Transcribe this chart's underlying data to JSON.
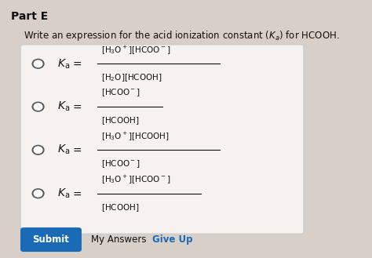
{
  "title": "Part E",
  "subtitle": "Write an expression for the acid ionization constant $(K_a)$ for HCOOH.",
  "bg_color": "#d8d0c8",
  "box_bg": "#f5f2ef",
  "box_edge": "#cccccc",
  "bullet_color": "#555555",
  "text_color": "#111111",
  "submit_bg": "#1a6ab5",
  "submit_text": "Submit",
  "my_answers_text": "My Answers",
  "give_up_text": "Give Up",
  "options": [
    {
      "numerator": "$[\\mathrm{H_3O^+}][\\mathrm{HCOO^-}]$",
      "denominator": "$[\\mathrm{H_2O}][\\mathrm{HCOOH}]$"
    },
    {
      "numerator": "$[\\mathrm{HCOO^-}]$",
      "denominator": "$[\\mathrm{HCOOH}]$"
    },
    {
      "numerator": "$[\\mathrm{H_3O^+}][\\mathrm{HCOOH}]$",
      "denominator": "$[\\mathrm{HCOO^-}]$"
    },
    {
      "numerator": "$[\\mathrm{H_3O^+}][\\mathrm{HCOO^-}]$",
      "denominator": "$[\\mathrm{HCOOH}]$"
    }
  ]
}
